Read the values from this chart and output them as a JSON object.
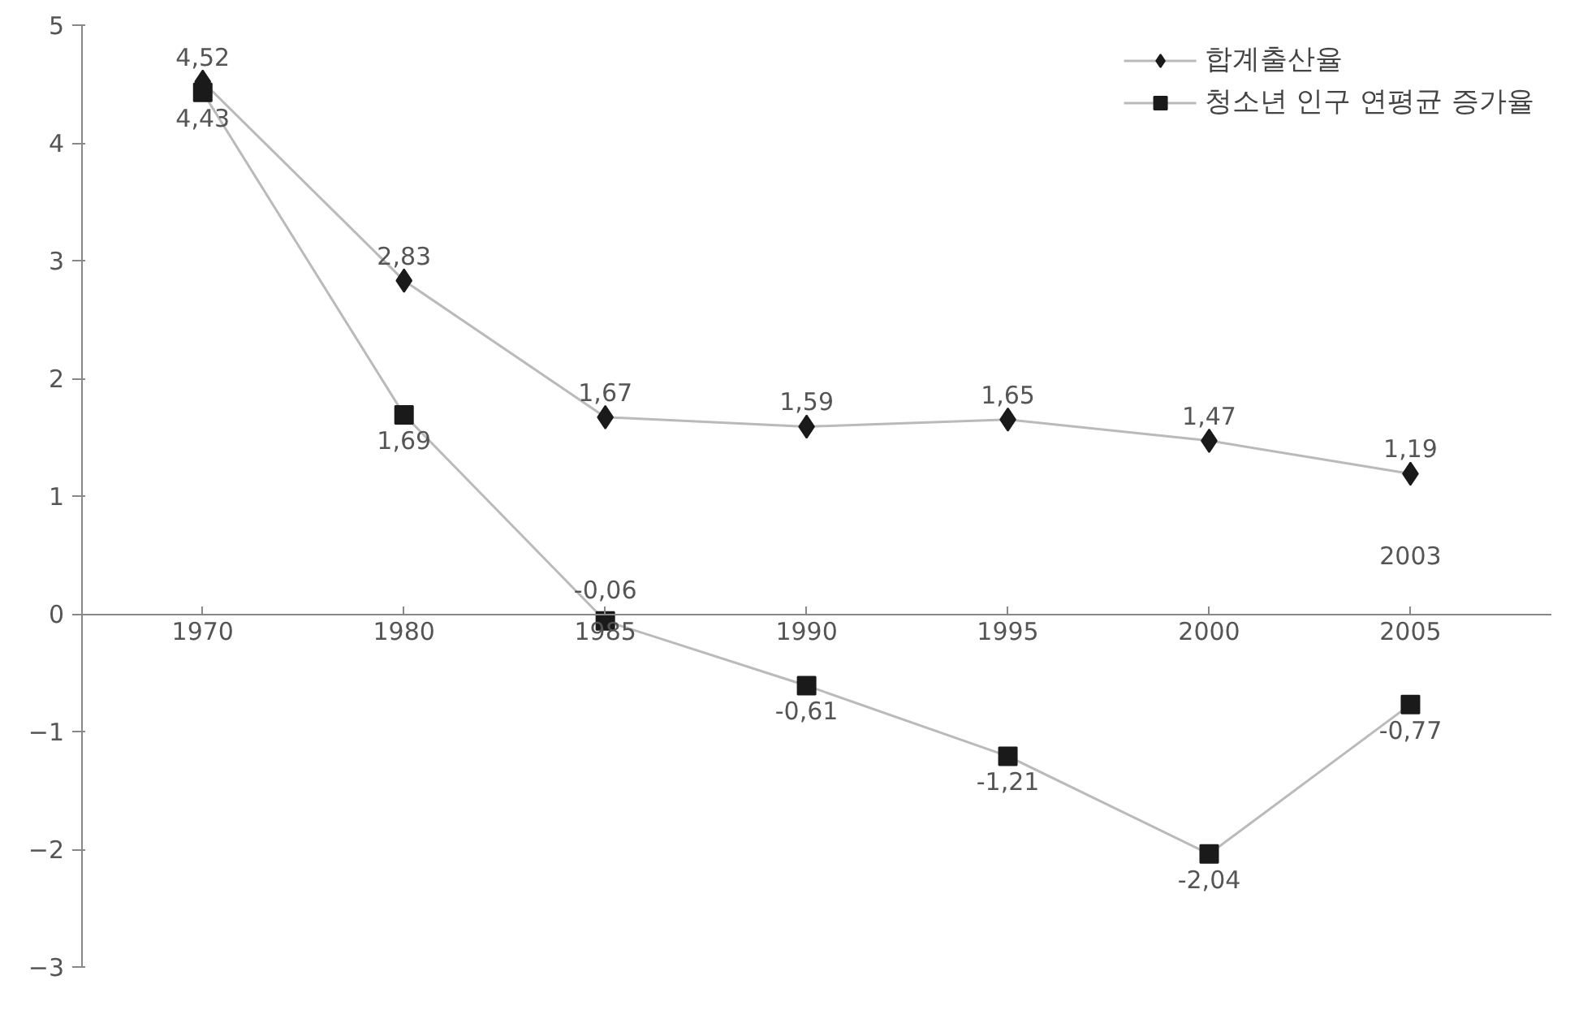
{
  "chart_data": {
    "type": "line",
    "categories": [
      "1970",
      "1980",
      "1985",
      "1990",
      "1995",
      "2000",
      "2005"
    ],
    "series": [
      {
        "name": "합계출산율",
        "color": "#1a1a1a",
        "marker": "diamond",
        "values": [
          4.52,
          2.83,
          1.67,
          1.59,
          1.65,
          1.47,
          1.19
        ],
        "value_labels": [
          "4,52",
          "2,83",
          "1,67",
          "1,59",
          "1,65",
          "1,47",
          "1,19"
        ]
      },
      {
        "name": "청소년 인구 연평균 증가율",
        "color": "#1a1a1a",
        "marker": "square",
        "values": [
          4.43,
          1.69,
          -0.06,
          -0.61,
          -1.21,
          -2.04,
          -0.77
        ],
        "value_labels": [
          "4,43",
          "1,69",
          "-0,06",
          "-0,61",
          "-1,21",
          "-2,04",
          "-0,77"
        ]
      }
    ],
    "ylim": [
      -3,
      5
    ],
    "yticks": [
      -3,
      -2,
      -1,
      0,
      1,
      2,
      3,
      4,
      5
    ],
    "grid": false,
    "legend": "top right",
    "annotations": [
      {
        "text": "2003",
        "x": "2005",
        "y": 1.19
      }
    ]
  }
}
